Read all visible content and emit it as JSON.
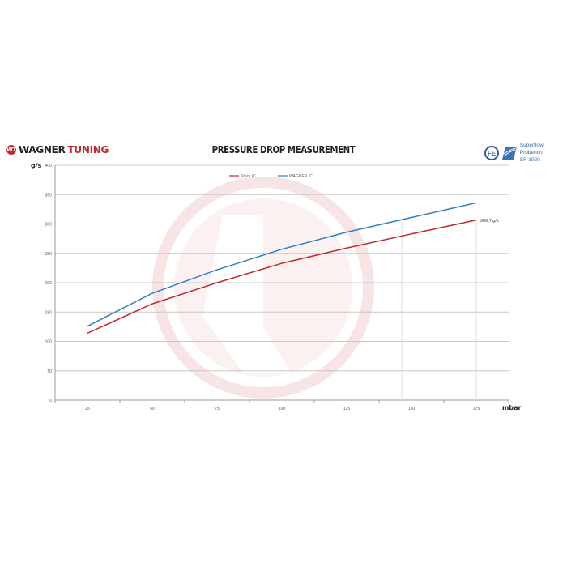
{
  "header": {
    "brand_left": "WAGNER",
    "brand_right": "TUNING",
    "brand_mark": "WT",
    "bench_line1": "Superflow Probench",
    "bench_line2": "SF-1020"
  },
  "chart_data": {
    "type": "line",
    "title": "PRESSURE DROP MEASUREMENT",
    "xlabel": "mbar",
    "ylabel": "g/s",
    "categories": [
      "25",
      "50",
      "75",
      "100",
      "125",
      "150",
      "175"
    ],
    "ylim": [
      0,
      400
    ],
    "yticks": [
      "0",
      "50",
      "100",
      "150",
      "200",
      "250",
      "300",
      "350",
      "400"
    ],
    "grid": true,
    "legend_position": "top-center",
    "series": [
      {
        "name": "Stock IC",
        "color": "#c0282d",
        "values": [
          114,
          164,
          200,
          233,
          259,
          283,
          306.7
        ]
      },
      {
        "name": "WAGNER IC",
        "color": "#2f7fc1",
        "values": [
          126,
          182,
          222,
          257,
          286,
          311,
          336
        ]
      }
    ],
    "annotation": "306,7 g/s"
  }
}
